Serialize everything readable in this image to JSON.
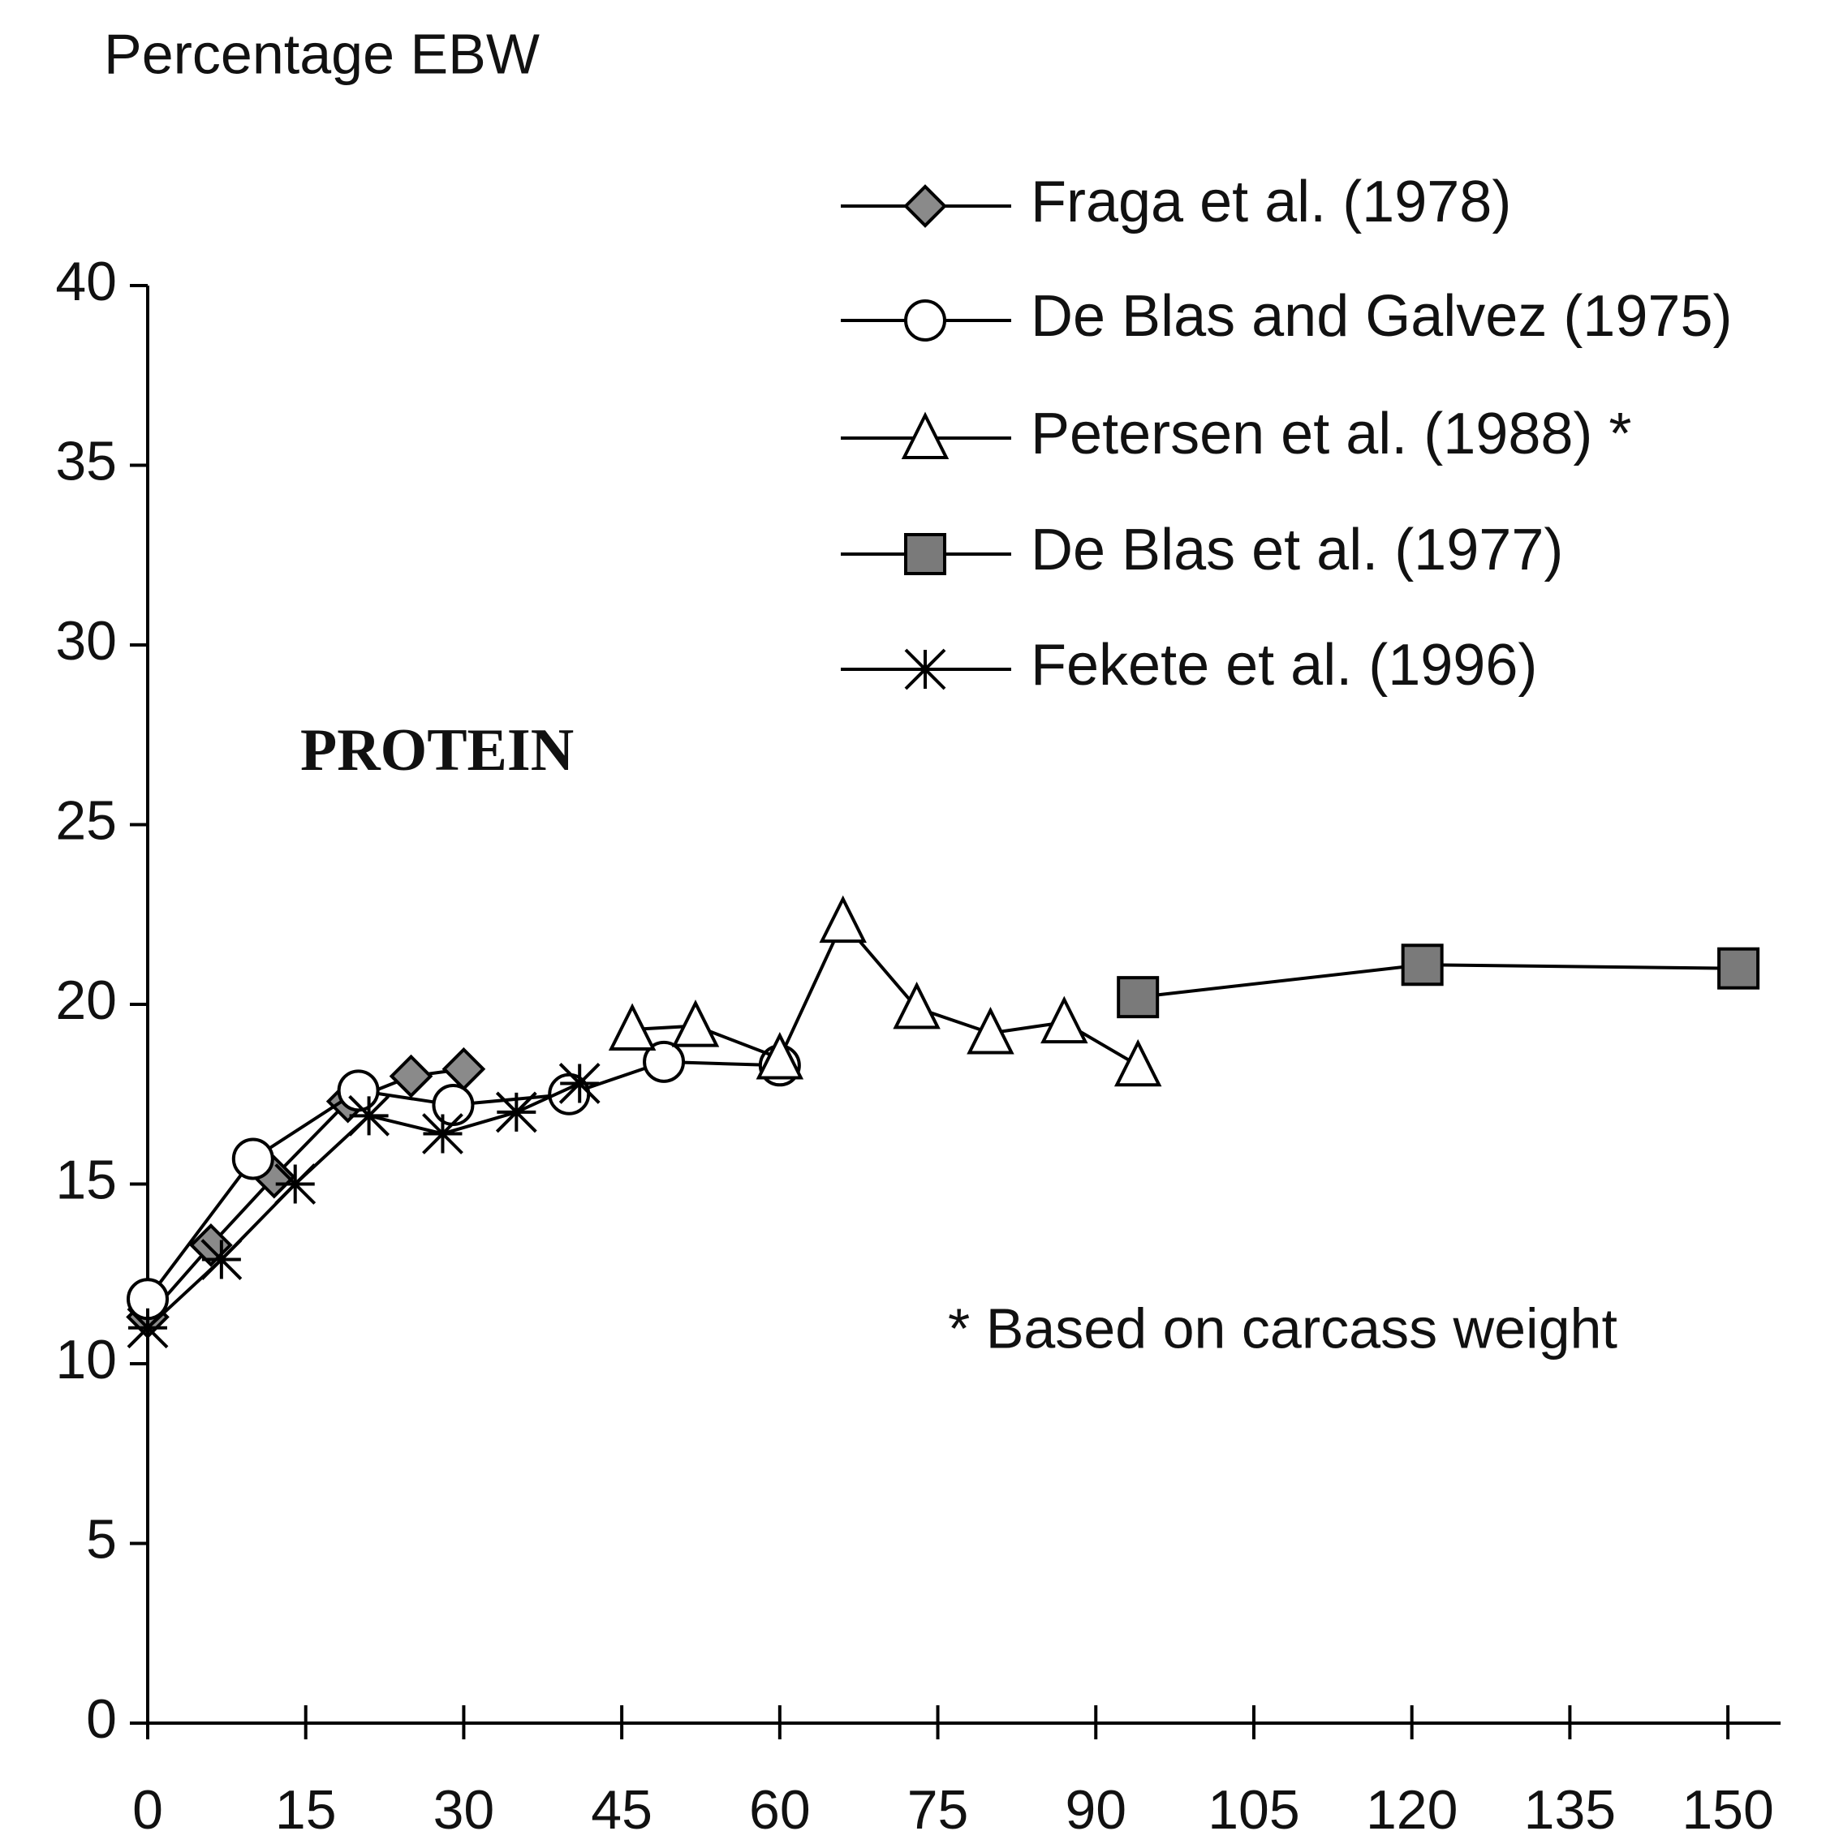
{
  "chart_data": {
    "type": "line",
    "y_label": "Percentage EBW",
    "annotations": [
      "PROTEIN",
      "* Based on carcass weight"
    ],
    "xlim": [
      0,
      155
    ],
    "ylim": [
      0,
      40
    ],
    "xticks": [
      0,
      15,
      30,
      45,
      60,
      75,
      90,
      105,
      120,
      135,
      150
    ],
    "yticks": [
      0,
      5,
      10,
      15,
      20,
      25,
      30,
      35,
      40
    ],
    "legend": "upper right",
    "series": [
      {
        "name": "Fraga et al. (1978)",
        "color": "#000000",
        "marker": "diamond",
        "marker_fill": "#8a8a8a",
        "x": [
          0,
          6,
          12,
          19,
          25,
          30
        ],
        "values": [
          11.3,
          13.3,
          15.2,
          17.3,
          18.0,
          18.2
        ]
      },
      {
        "name": "De Blas and Galvez (1975)",
        "color": "#000000",
        "marker": "circle",
        "marker_fill": "#ffffff",
        "x": [
          0,
          10,
          20,
          29,
          40,
          49,
          60
        ],
        "values": [
          11.8,
          15.7,
          17.6,
          17.2,
          17.5,
          18.4,
          18.3
        ]
      },
      {
        "name": "Petersen et al. (1988) *",
        "color": "#000000",
        "marker": "triangle",
        "marker_fill": "#ffffff",
        "x": [
          46,
          52,
          60,
          66,
          73,
          80,
          87,
          94
        ],
        "values": [
          19.3,
          19.4,
          18.5,
          22.3,
          19.9,
          19.2,
          19.5,
          18.3
        ]
      },
      {
        "name": "De Blas et al. (1977)",
        "color": "#000000",
        "marker": "square",
        "marker_fill": "#7a7a7a",
        "x": [
          94,
          121,
          151
        ],
        "values": [
          20.2,
          21.1,
          21.0
        ]
      },
      {
        "name": "Fekete et al. (1996)",
        "color": "#000000",
        "marker": "star",
        "marker_fill": "#000000",
        "x": [
          0,
          7,
          14,
          21,
          28,
          35,
          41
        ],
        "values": [
          11.0,
          12.9,
          15.0,
          16.9,
          16.4,
          17.0,
          17.8
        ]
      }
    ]
  }
}
